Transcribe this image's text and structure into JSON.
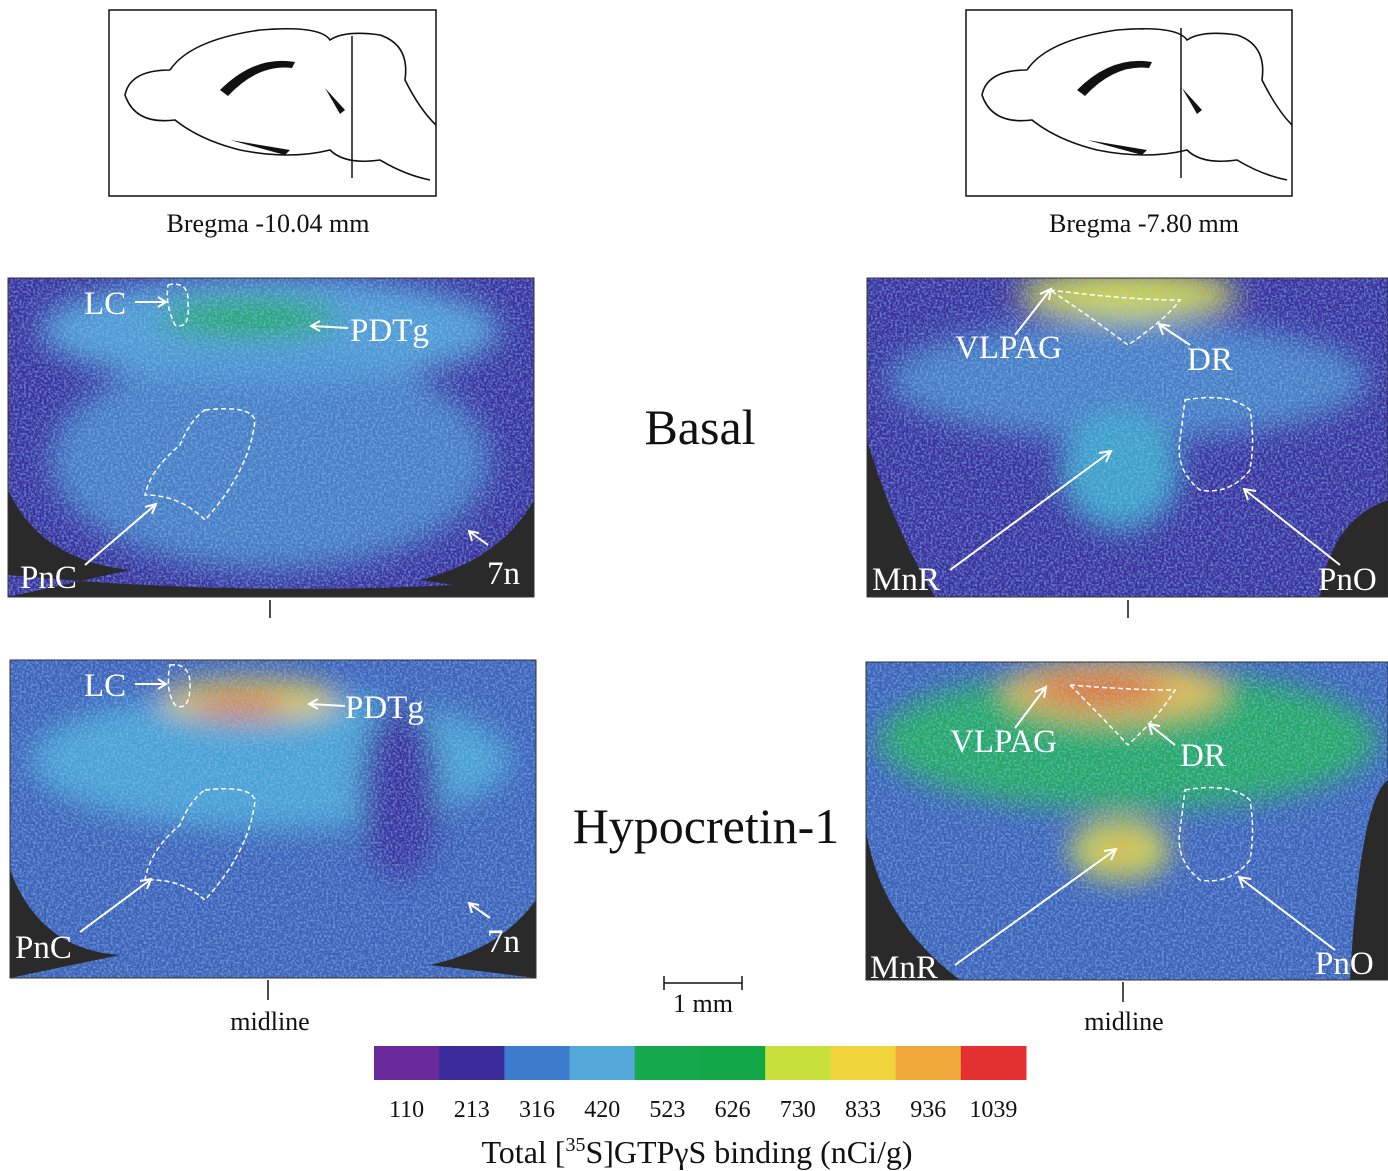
{
  "sections": [
    {
      "bregma": "Bregma -10.04 mm",
      "labels": {
        "top_a": "LC",
        "top_b": "PDTg",
        "bottom_a": "PnC",
        "bottom_b": "7n"
      }
    },
    {
      "bregma": "Bregma -7.80 mm",
      "labels": {
        "top_a": "VLPAG",
        "top_b": "DR",
        "bottom_a": "MnR",
        "bottom_b": "PnO"
      }
    }
  ],
  "conditions": [
    "Basal",
    "Hypocretin-1"
  ],
  "midline": "midline",
  "scale_bar": "1 mm",
  "colorbar": {
    "ticks": [
      110,
      213,
      316,
      420,
      523,
      626,
      730,
      833,
      936,
      1039
    ],
    "colors": [
      "#6a2a9c",
      "#3b2c9c",
      "#3d7ccc",
      "#52a8d8",
      "#16a84c",
      "#12a848",
      "#c8e03c",
      "#f0d43c",
      "#f0a838",
      "#e43030"
    ],
    "title_parts": [
      "Total [",
      "35",
      "S]GTPγS binding (nCi/g)"
    ]
  }
}
